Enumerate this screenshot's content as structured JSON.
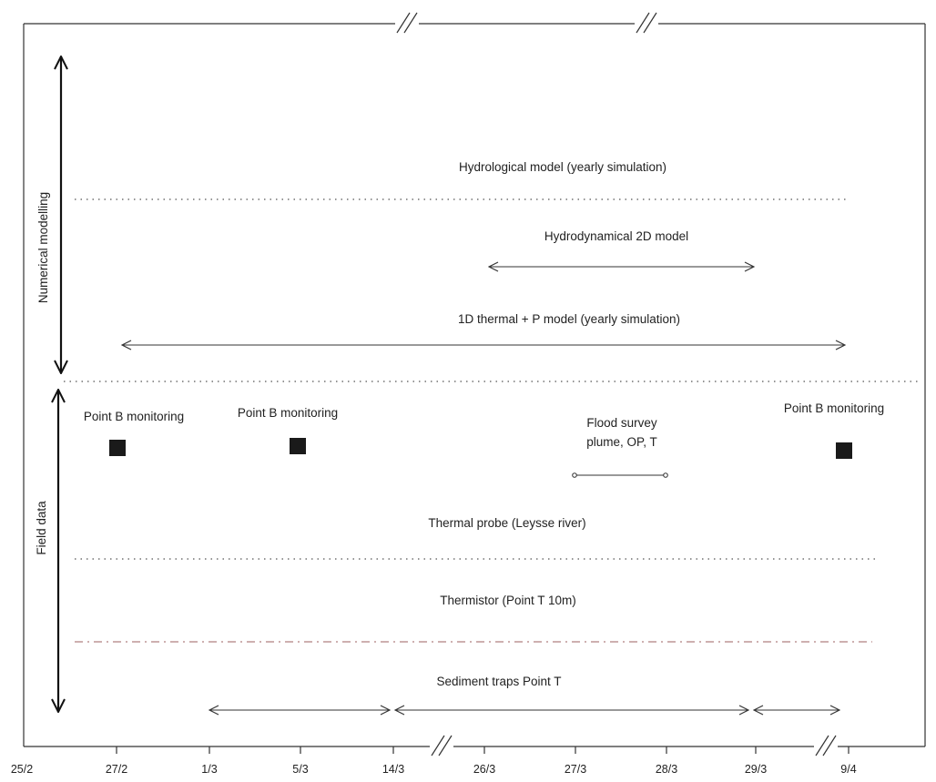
{
  "axis": {
    "ticks": [
      "25/2",
      "27/2",
      "1/3",
      "5/3",
      "14/3",
      "26/3",
      "27/3",
      "28/3",
      "29/3",
      "9/4"
    ]
  },
  "sections": {
    "numerical": "Numerical modelling",
    "field": "Field data"
  },
  "activities": {
    "hydrological": "Hydrological model (yearly simulation)",
    "hydrodynamical": "Hydrodynamical 2D model",
    "thermal_model": "1D thermal + P model (yearly simulation)",
    "point_b_1": "Point B monitoring",
    "point_b_2": "Point B monitoring",
    "point_b_3": "Point B monitoring",
    "flood_survey_line1": "Flood survey",
    "flood_survey_line2": "plume, OP, T",
    "thermal_probe": "Thermal probe (Leysse river)",
    "thermistor": "Thermistor (Point T 10m)",
    "sediment_traps": "Sediment traps Point T"
  },
  "colors": {
    "line": "#222222",
    "marker": "#1a1a1a",
    "dash_dot": "#b08080"
  }
}
